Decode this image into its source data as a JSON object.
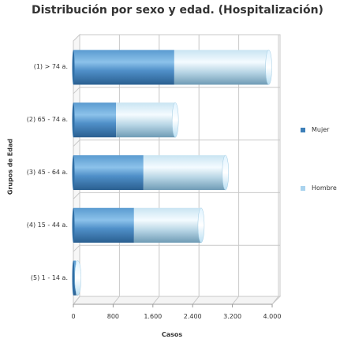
{
  "chart_data": {
    "type": "bar",
    "orientation": "horizontal",
    "stacked": true,
    "style": "3d-cylinder",
    "title": "Distribución por sexo y edad. (Hospitalización)",
    "xlabel": "Casos",
    "ylabel": "Grupos de Edad",
    "categories": [
      "(1) > 74 a.",
      "(2) 65 - 74 a.",
      "(3) 45 - 64 a.",
      "(4) 15 - 44 a.",
      "(5) 1 - 14 a."
    ],
    "series": [
      {
        "name": "Mujer",
        "color": "#3d7fb8",
        "values": [
          2030,
          860,
          1410,
          1220,
          50
        ]
      },
      {
        "name": "Hombre",
        "color": "#a9d3ee",
        "values": [
          1900,
          1190,
          1650,
          1350,
          40
        ]
      }
    ],
    "xlim": [
      0,
      4000
    ],
    "xticks": [
      "0",
      "800",
      "1.600",
      "2.400",
      "3.200",
      "4.000"
    ],
    "grid": true,
    "legend_position": "right"
  },
  "colors": {
    "mujer": "#3d7fb8",
    "hombre": "#a9d3ee",
    "grid": "#c8c8c8"
  }
}
